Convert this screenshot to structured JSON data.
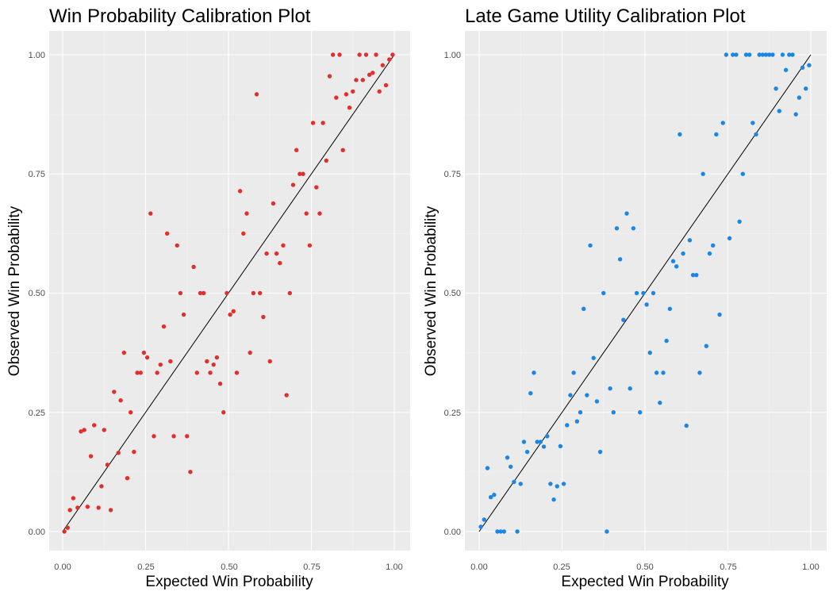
{
  "colors": {
    "panel_bg": "#ebebeb",
    "grid_major": "#ffffff",
    "grid_minor": "#f4f4f4",
    "line": "#000000",
    "left_points": "#e0302c",
    "right_points": "#1c86e4"
  },
  "chart_data": [
    {
      "type": "scatter",
      "title": "Win Probability Calibration Plot",
      "xlabel": "Expected Win Probability",
      "ylabel": "Observed Win Probability",
      "xlim": [
        0,
        1
      ],
      "ylim": [
        0,
        1
      ],
      "xticks": [
        "0.00",
        "0.25",
        "0.50",
        "0.75",
        "1.00"
      ],
      "yticks": [
        "0.00",
        "0.25",
        "0.50",
        "0.75",
        "1.00"
      ],
      "grid": true,
      "reference_line": [
        [
          0,
          0
        ],
        [
          1,
          1
        ]
      ],
      "point_color": "#e0302c",
      "points": [
        [
          0.005,
          0.0
        ],
        [
          0.015,
          0.008
        ],
        [
          0.022,
          0.045
        ],
        [
          0.032,
          0.07
        ],
        [
          0.045,
          0.05
        ],
        [
          0.055,
          0.21
        ],
        [
          0.065,
          0.213
        ],
        [
          0.075,
          0.052
        ],
        [
          0.085,
          0.158
        ],
        [
          0.095,
          0.223
        ],
        [
          0.108,
          0.05
        ],
        [
          0.117,
          0.095
        ],
        [
          0.125,
          0.213
        ],
        [
          0.135,
          0.14
        ],
        [
          0.145,
          0.045
        ],
        [
          0.155,
          0.293
        ],
        [
          0.168,
          0.165
        ],
        [
          0.175,
          0.275
        ],
        [
          0.185,
          0.375
        ],
        [
          0.195,
          0.112
        ],
        [
          0.205,
          0.25
        ],
        [
          0.215,
          0.167
        ],
        [
          0.225,
          0.333
        ],
        [
          0.235,
          0.333
        ],
        [
          0.245,
          0.375
        ],
        [
          0.255,
          0.365
        ],
        [
          0.265,
          0.667
        ],
        [
          0.275,
          0.2
        ],
        [
          0.285,
          0.333
        ],
        [
          0.295,
          0.35
        ],
        [
          0.305,
          0.43
        ],
        [
          0.315,
          0.625
        ],
        [
          0.325,
          0.357
        ],
        [
          0.335,
          0.2
        ],
        [
          0.345,
          0.6
        ],
        [
          0.355,
          0.5
        ],
        [
          0.365,
          0.455
        ],
        [
          0.375,
          0.2
        ],
        [
          0.385,
          0.125
        ],
        [
          0.395,
          0.555
        ],
        [
          0.405,
          0.333
        ],
        [
          0.415,
          0.5
        ],
        [
          0.425,
          0.5
        ],
        [
          0.435,
          0.357
        ],
        [
          0.445,
          0.333
        ],
        [
          0.455,
          0.35
        ],
        [
          0.465,
          0.365
        ],
        [
          0.475,
          0.31
        ],
        [
          0.485,
          0.25
        ],
        [
          0.495,
          0.5
        ],
        [
          0.505,
          0.455
        ],
        [
          0.515,
          0.462
        ],
        [
          0.525,
          0.333
        ],
        [
          0.535,
          0.714
        ],
        [
          0.545,
          0.625
        ],
        [
          0.555,
          0.667
        ],
        [
          0.565,
          0.375
        ],
        [
          0.575,
          0.5
        ],
        [
          0.585,
          0.917
        ],
        [
          0.595,
          0.5
        ],
        [
          0.605,
          0.45
        ],
        [
          0.615,
          0.583
        ],
        [
          0.625,
          0.357
        ],
        [
          0.635,
          0.688
        ],
        [
          0.645,
          0.583
        ],
        [
          0.655,
          0.563
        ],
        [
          0.665,
          0.6
        ],
        [
          0.675,
          0.286
        ],
        [
          0.685,
          0.5
        ],
        [
          0.695,
          0.727
        ],
        [
          0.705,
          0.8
        ],
        [
          0.715,
          0.75
        ],
        [
          0.725,
          0.75
        ],
        [
          0.735,
          0.667
        ],
        [
          0.745,
          0.6
        ],
        [
          0.755,
          0.857
        ],
        [
          0.765,
          0.722
        ],
        [
          0.775,
          0.667
        ],
        [
          0.785,
          0.857
        ],
        [
          0.795,
          0.778
        ],
        [
          0.805,
          0.955
        ],
        [
          0.815,
          1.0
        ],
        [
          0.825,
          0.91
        ],
        [
          0.835,
          1.0
        ],
        [
          0.845,
          0.8
        ],
        [
          0.855,
          0.917
        ],
        [
          0.865,
          0.889
        ],
        [
          0.875,
          0.923
        ],
        [
          0.885,
          0.947
        ],
        [
          0.895,
          1.0
        ],
        [
          0.905,
          0.947
        ],
        [
          0.915,
          1.0
        ],
        [
          0.925,
          0.958
        ],
        [
          0.935,
          0.962
        ],
        [
          0.945,
          1.0
        ],
        [
          0.955,
          0.923
        ],
        [
          0.965,
          0.978
        ],
        [
          0.975,
          0.936
        ],
        [
          0.985,
          0.99
        ],
        [
          0.995,
          1.0
        ]
      ]
    },
    {
      "type": "scatter",
      "title": "Late Game Utility Calibration Plot",
      "xlabel": "Expected Win Probability",
      "ylabel": "Observed Win Probability",
      "xlim": [
        0,
        1
      ],
      "ylim": [
        0,
        1
      ],
      "xticks": [
        "0.00",
        "0.25",
        "0.50",
        "0.75",
        "1.00"
      ],
      "yticks": [
        "0.00",
        "0.25",
        "0.50",
        "0.75",
        "1.00"
      ],
      "grid": true,
      "reference_line": [
        [
          0,
          0
        ],
        [
          1,
          1
        ]
      ],
      "point_color": "#1c86e4",
      "points": [
        [
          0.005,
          0.01
        ],
        [
          0.015,
          0.025
        ],
        [
          0.025,
          0.133
        ],
        [
          0.035,
          0.072
        ],
        [
          0.045,
          0.077
        ],
        [
          0.055,
          0.0
        ],
        [
          0.065,
          0.0
        ],
        [
          0.075,
          0.0
        ],
        [
          0.085,
          0.155
        ],
        [
          0.095,
          0.136
        ],
        [
          0.105,
          0.104
        ],
        [
          0.115,
          0.0
        ],
        [
          0.125,
          0.1
        ],
        [
          0.135,
          0.188
        ],
        [
          0.145,
          0.167
        ],
        [
          0.155,
          0.29
        ],
        [
          0.165,
          0.333
        ],
        [
          0.175,
          0.188
        ],
        [
          0.185,
          0.188
        ],
        [
          0.195,
          0.178
        ],
        [
          0.205,
          0.2
        ],
        [
          0.215,
          0.1
        ],
        [
          0.225,
          0.067
        ],
        [
          0.235,
          0.095
        ],
        [
          0.245,
          0.179
        ],
        [
          0.255,
          0.1
        ],
        [
          0.265,
          0.223
        ],
        [
          0.275,
          0.286
        ],
        [
          0.285,
          0.333
        ],
        [
          0.295,
          0.231
        ],
        [
          0.305,
          0.25
        ],
        [
          0.315,
          0.467
        ],
        [
          0.325,
          0.286
        ],
        [
          0.335,
          0.6
        ],
        [
          0.345,
          0.364
        ],
        [
          0.355,
          0.273
        ],
        [
          0.365,
          0.167
        ],
        [
          0.375,
          0.5
        ],
        [
          0.385,
          0.0
        ],
        [
          0.395,
          0.3
        ],
        [
          0.405,
          0.25
        ],
        [
          0.415,
          0.636
        ],
        [
          0.425,
          0.571
        ],
        [
          0.435,
          0.444
        ],
        [
          0.445,
          0.667
        ],
        [
          0.455,
          0.3
        ],
        [
          0.465,
          0.636
        ],
        [
          0.475,
          0.5
        ],
        [
          0.485,
          0.25
        ],
        [
          0.495,
          0.5
        ],
        [
          0.505,
          0.476
        ],
        [
          0.515,
          0.375
        ],
        [
          0.525,
          0.5
        ],
        [
          0.535,
          0.333
        ],
        [
          0.545,
          0.27
        ],
        [
          0.555,
          0.333
        ],
        [
          0.565,
          0.4
        ],
        [
          0.575,
          0.467
        ],
        [
          0.585,
          0.567
        ],
        [
          0.595,
          0.556
        ],
        [
          0.605,
          0.833
        ],
        [
          0.615,
          0.583
        ],
        [
          0.625,
          0.222
        ],
        [
          0.635,
          0.611
        ],
        [
          0.645,
          0.538
        ],
        [
          0.655,
          0.538
        ],
        [
          0.665,
          0.333
        ],
        [
          0.675,
          0.75
        ],
        [
          0.685,
          0.389
        ],
        [
          0.695,
          0.583
        ],
        [
          0.705,
          0.6
        ],
        [
          0.715,
          0.833
        ],
        [
          0.725,
          0.455
        ],
        [
          0.735,
          0.857
        ],
        [
          0.745,
          1.0
        ],
        [
          0.755,
          0.615
        ],
        [
          0.765,
          1.0
        ],
        [
          0.775,
          1.0
        ],
        [
          0.785,
          0.65
        ],
        [
          0.795,
          0.75
        ],
        [
          0.805,
          1.0
        ],
        [
          0.815,
          1.0
        ],
        [
          0.825,
          0.857
        ],
        [
          0.835,
          0.833
        ],
        [
          0.845,
          1.0
        ],
        [
          0.855,
          1.0
        ],
        [
          0.865,
          1.0
        ],
        [
          0.875,
          1.0
        ],
        [
          0.885,
          1.0
        ],
        [
          0.895,
          0.929
        ],
        [
          0.905,
          0.882
        ],
        [
          0.915,
          1.0
        ],
        [
          0.925,
          0.968
        ],
        [
          0.935,
          1.0
        ],
        [
          0.945,
          1.0
        ],
        [
          0.955,
          0.875
        ],
        [
          0.965,
          0.91
        ],
        [
          0.975,
          0.973
        ],
        [
          0.985,
          0.929
        ],
        [
          0.995,
          0.978
        ]
      ]
    }
  ]
}
